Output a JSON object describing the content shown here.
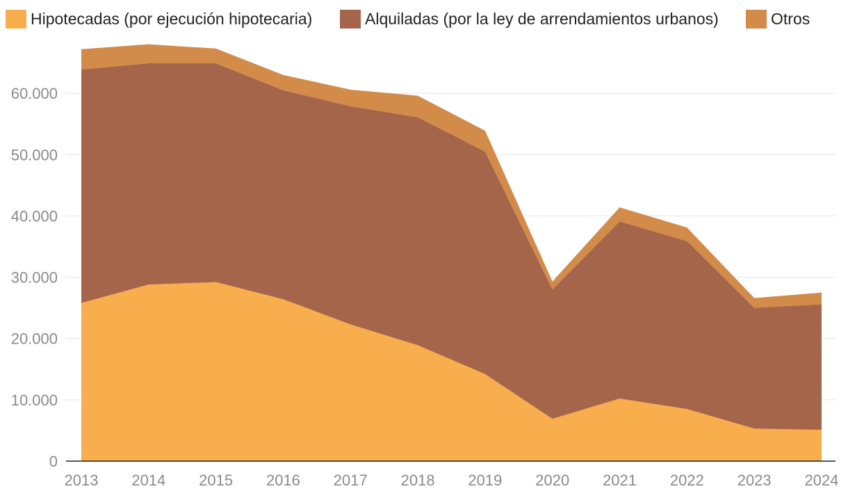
{
  "chart_data": {
    "type": "area",
    "stacked": true,
    "title": "",
    "xlabel": "",
    "ylabel": "",
    "x": [
      "2013",
      "2014",
      "2015",
      "2016",
      "2017",
      "2018",
      "2019",
      "2020",
      "2021",
      "2022",
      "2023",
      "2024"
    ],
    "y_ticks": [
      0,
      10000,
      20000,
      30000,
      40000,
      50000,
      60000
    ],
    "y_tick_labels": [
      "0",
      "10.000",
      "20.000",
      "30.000",
      "40.000",
      "50.000",
      "60.000"
    ],
    "ylim": [
      0,
      70000
    ],
    "grid": true,
    "legend_position": "top",
    "series": [
      {
        "name": "Hipotecadas (por ejecución hipotecaria)",
        "color": "#F9AE4D",
        "values": [
          25800,
          28800,
          29200,
          26400,
          22300,
          18900,
          14200,
          6900,
          10200,
          8500,
          5300,
          5100
        ]
      },
      {
        "name": "Alquiladas (por la ley de arrendamientos urbanos)",
        "color": "#A5654A",
        "values": [
          38100,
          36100,
          35700,
          34100,
          35600,
          37200,
          36300,
          21100,
          28900,
          27400,
          19700,
          20500
        ]
      },
      {
        "name": "Otros",
        "color": "#D38B4A",
        "values": [
          3300,
          3100,
          2400,
          2500,
          2700,
          3500,
          3400,
          1300,
          2300,
          2200,
          1600,
          1900
        ]
      }
    ]
  }
}
